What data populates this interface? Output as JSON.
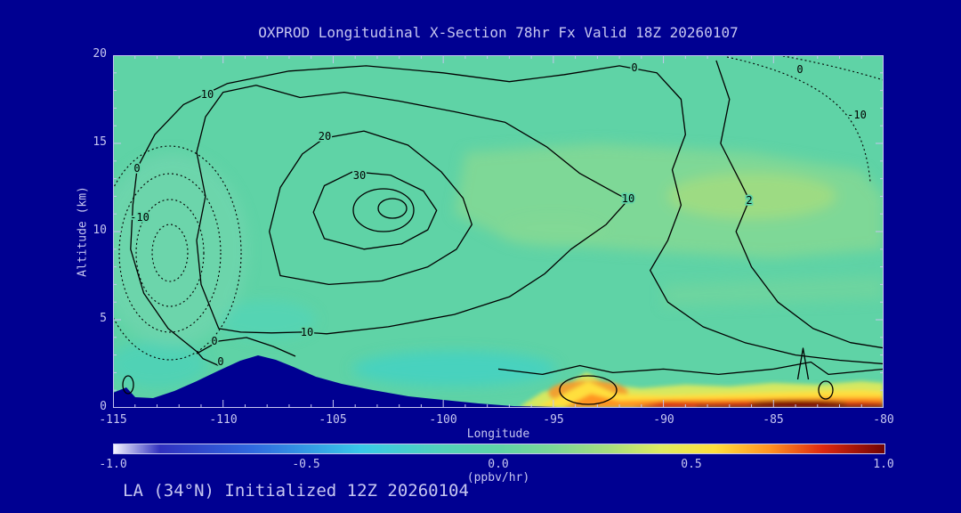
{
  "window": {
    "title": "OXPROD Longitudinal X-Section 78hr  Fx Valid 18Z 20260107",
    "footer": "LA (34°N) Initialized 12Z 20260104"
  },
  "colors": {
    "background": "#000091",
    "text": "#c6c6f0",
    "field_green": "#5fd3a6",
    "contour_line": "#000000",
    "terrain": "#000091",
    "surface_max_red": "#dd2810"
  },
  "chart_data": {
    "type": "contour",
    "title": "OXPROD Longitudinal X-Section 78hr  Fx Valid 18Z 20260107",
    "xlabel": "Longitude",
    "ylabel": "Altitude (km)",
    "xlim": [
      -115,
      -80
    ],
    "ylim": [
      0,
      20
    ],
    "x_ticks": [
      "-115",
      "-110",
      "-105",
      "-100",
      "-95",
      "-90",
      "-85",
      "-80"
    ],
    "y_ticks": [
      "0",
      "5",
      "10",
      "15",
      "20"
    ],
    "colorbar": {
      "label": "(ppbv/hr)",
      "min": -1.0,
      "max": 1.0,
      "tick_labels": [
        "-1.0",
        "-0.5",
        "0.0",
        "0.5",
        "1.0"
      ],
      "colors_left_to_right": [
        "#f5f5ff",
        "#3030c0",
        "#2f6ae0",
        "#38c8e8",
        "#5fd3a6",
        "#8bd98e",
        "#cfe96a",
        "#ffdf3c",
        "#ff9422",
        "#dd2810",
        "#6f0303"
      ]
    },
    "labeled_contour_levels": [
      -10,
      0,
      2,
      10,
      20,
      30
    ],
    "contour_labels": [
      {
        "text": "0",
        "lon": -113.9,
        "alt_km": 13.6,
        "style": "solid"
      },
      {
        "text": "10",
        "lon": -110.7,
        "alt_km": 17.8,
        "style": "solid"
      },
      {
        "text": "20",
        "lon": -105.4,
        "alt_km": 15.4,
        "style": "solid"
      },
      {
        "text": "30",
        "lon": -103.8,
        "alt_km": 13.0,
        "style": "solid"
      },
      {
        "text": "-10",
        "lon": -113.8,
        "alt_km": 10.8,
        "style": "dotted"
      },
      {
        "text": "0",
        "lon": -110.4,
        "alt_km": 3.8,
        "style": "solid"
      },
      {
        "text": "0",
        "lon": -110.1,
        "alt_km": 2.3,
        "style": "solid"
      },
      {
        "text": "10",
        "lon": -106.2,
        "alt_km": 4.3,
        "style": "solid"
      },
      {
        "text": "0",
        "lon": -91.3,
        "alt_km": 19.3,
        "style": "solid"
      },
      {
        "text": "10",
        "lon": -91.6,
        "alt_km": 11.9,
        "style": "solid"
      },
      {
        "text": "2",
        "lon": -86.1,
        "alt_km": 11.8,
        "style": "solid"
      },
      {
        "text": "0",
        "lon": -83.8,
        "alt_km": 19.2,
        "style": "dotted"
      },
      {
        "text": "-10",
        "lon": -81.2,
        "alt_km": 16.6,
        "style": "dotted"
      }
    ],
    "contour_max_center": {
      "lon": -102.5,
      "alt_km": 11.3,
      "innermost_labeled_level": 30
    },
    "negative_region_center": {
      "lon": -112.4,
      "alt_km": 8.8,
      "labeled_level": -10,
      "line_style": "dotted"
    },
    "terrain_profile": [
      [
        -115,
        0.85
      ],
      [
        -114.4,
        1.15
      ],
      [
        -114,
        0.6
      ],
      [
        -113.2,
        0.55
      ],
      [
        -112.2,
        0.95
      ],
      [
        -111.2,
        1.5
      ],
      [
        -110.2,
        2.1
      ],
      [
        -109.2,
        2.7
      ],
      [
        -108.4,
        3.0
      ],
      [
        -107.6,
        2.75
      ],
      [
        -106.8,
        2.3
      ],
      [
        -105.8,
        1.75
      ],
      [
        -104.6,
        1.35
      ],
      [
        -103.2,
        1.0
      ],
      [
        -101.6,
        0.65
      ],
      [
        -100,
        0.45
      ],
      [
        -98.4,
        0.25
      ],
      [
        -96.8,
        0.1
      ],
      [
        -95,
        0.05
      ]
    ],
    "shaded_field_units": "ppbv/hr",
    "shaded_field_notes": {
      "dominant_value_range": [
        0.0,
        0.2
      ],
      "surface_maximum_band": {
        "lon_range": [
          -95,
          -80
        ],
        "alt_range_km": [
          0,
          1.2
        ],
        "peak_value_approx": 1.0
      },
      "local_surface_maximum": {
        "lon": -93.4,
        "alt_km": 0.9,
        "value_approx": 0.6
      }
    }
  }
}
